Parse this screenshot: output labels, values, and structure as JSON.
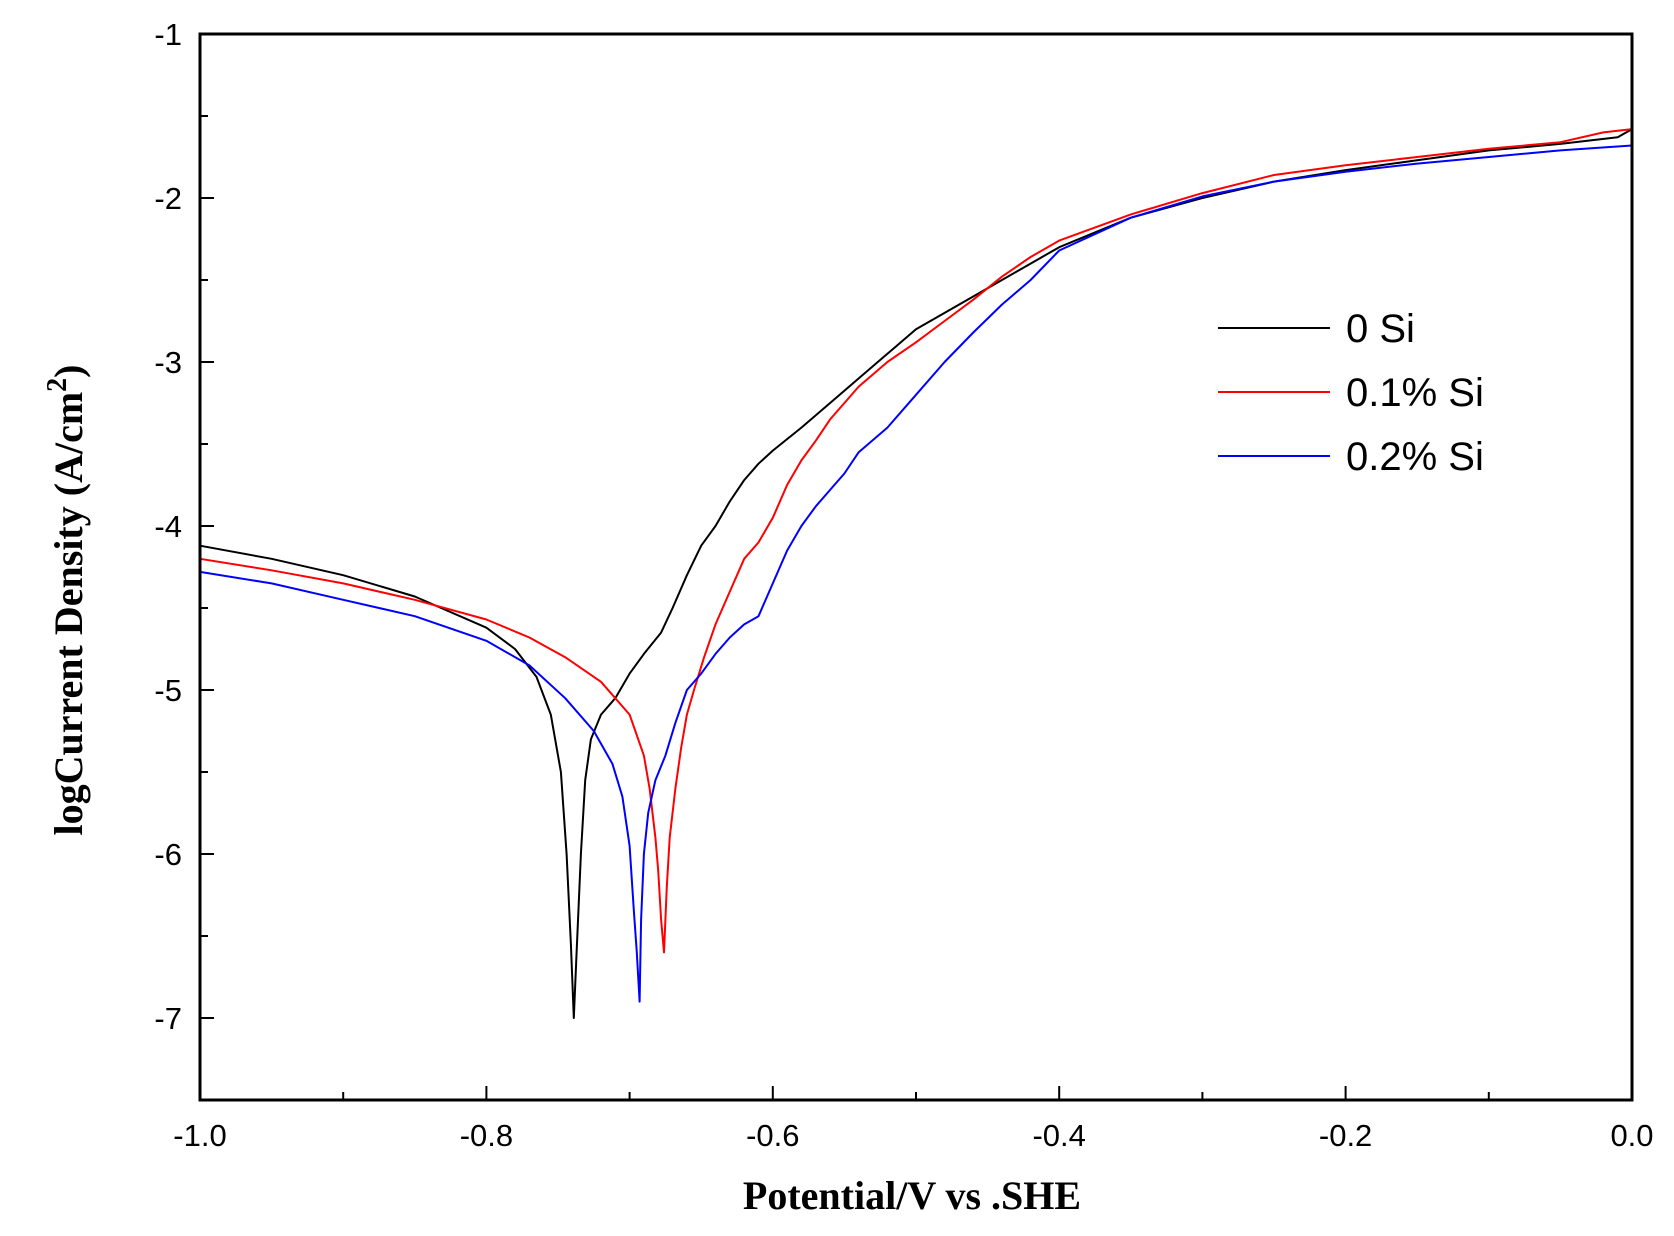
{
  "chart_data": {
    "type": "line",
    "title": "",
    "xlabel": "Potential/V vs .SHE",
    "ylabel": {
      "text": "logCurrent Density (A/cm",
      "superscript": "2",
      "close": ")"
    },
    "xlim": [
      -1.0,
      0.0
    ],
    "ylim": [
      -7.5,
      -1.0
    ],
    "xticks": [
      -1.0,
      -0.8,
      -0.6,
      -0.4,
      -0.2,
      0.0
    ],
    "xtick_labels": [
      "-1.0",
      "-0.8",
      "-0.6",
      "-0.4",
      "-0.2",
      "0.0"
    ],
    "yticks": [
      -1,
      -2,
      -3,
      -4,
      -5,
      -6,
      -7
    ],
    "ytick_labels": [
      "-1",
      "-2",
      "-3",
      "-4",
      "-5",
      "-6",
      "-7"
    ],
    "grid": false,
    "legend_position": "right-upper",
    "series": [
      {
        "name": "0 Si",
        "color": "#000000",
        "points": [
          [
            -1.0,
            -4.12
          ],
          [
            -0.95,
            -4.2
          ],
          [
            -0.9,
            -4.3
          ],
          [
            -0.85,
            -4.43
          ],
          [
            -0.8,
            -4.62
          ],
          [
            -0.78,
            -4.75
          ],
          [
            -0.765,
            -4.92
          ],
          [
            -0.755,
            -5.15
          ],
          [
            -0.748,
            -5.5
          ],
          [
            -0.744,
            -6.0
          ],
          [
            -0.741,
            -6.55
          ],
          [
            -0.739,
            -7.0
          ],
          [
            -0.737,
            -6.6
          ],
          [
            -0.734,
            -6.0
          ],
          [
            -0.731,
            -5.55
          ],
          [
            -0.727,
            -5.3
          ],
          [
            -0.72,
            -5.15
          ],
          [
            -0.71,
            -5.05
          ],
          [
            -0.7,
            -4.9
          ],
          [
            -0.69,
            -4.78
          ],
          [
            -0.678,
            -4.65
          ],
          [
            -0.67,
            -4.5
          ],
          [
            -0.66,
            -4.3
          ],
          [
            -0.65,
            -4.12
          ],
          [
            -0.64,
            -4.0
          ],
          [
            -0.63,
            -3.85
          ],
          [
            -0.62,
            -3.72
          ],
          [
            -0.61,
            -3.62
          ],
          [
            -0.6,
            -3.54
          ],
          [
            -0.58,
            -3.4
          ],
          [
            -0.56,
            -3.25
          ],
          [
            -0.54,
            -3.1
          ],
          [
            -0.52,
            -2.95
          ],
          [
            -0.5,
            -2.8
          ],
          [
            -0.47,
            -2.65
          ],
          [
            -0.45,
            -2.55
          ],
          [
            -0.42,
            -2.4
          ],
          [
            -0.4,
            -2.3
          ],
          [
            -0.35,
            -2.12
          ],
          [
            -0.3,
            -2.0
          ],
          [
            -0.25,
            -1.9
          ],
          [
            -0.2,
            -1.83
          ],
          [
            -0.15,
            -1.77
          ],
          [
            -0.1,
            -1.71
          ],
          [
            -0.05,
            -1.67
          ],
          [
            -0.01,
            -1.63
          ],
          [
            0.0,
            -1.58
          ]
        ]
      },
      {
        "name": "0.1% Si",
        "color": "#ff0000",
        "points": [
          [
            -1.0,
            -4.2
          ],
          [
            -0.95,
            -4.27
          ],
          [
            -0.9,
            -4.35
          ],
          [
            -0.85,
            -4.45
          ],
          [
            -0.8,
            -4.57
          ],
          [
            -0.77,
            -4.68
          ],
          [
            -0.745,
            -4.8
          ],
          [
            -0.72,
            -4.95
          ],
          [
            -0.7,
            -5.15
          ],
          [
            -0.69,
            -5.4
          ],
          [
            -0.686,
            -5.6
          ],
          [
            -0.682,
            -5.9
          ],
          [
            -0.68,
            -6.1
          ],
          [
            -0.678,
            -6.4
          ],
          [
            -0.676,
            -6.6
          ],
          [
            -0.674,
            -6.2
          ],
          [
            -0.672,
            -5.9
          ],
          [
            -0.668,
            -5.6
          ],
          [
            -0.664,
            -5.35
          ],
          [
            -0.66,
            -5.15
          ],
          [
            -0.655,
            -5.0
          ],
          [
            -0.648,
            -4.8
          ],
          [
            -0.64,
            -4.6
          ],
          [
            -0.63,
            -4.4
          ],
          [
            -0.62,
            -4.2
          ],
          [
            -0.61,
            -4.1
          ],
          [
            -0.6,
            -3.95
          ],
          [
            -0.59,
            -3.75
          ],
          [
            -0.58,
            -3.6
          ],
          [
            -0.57,
            -3.48
          ],
          [
            -0.56,
            -3.35
          ],
          [
            -0.54,
            -3.15
          ],
          [
            -0.52,
            -3.0
          ],
          [
            -0.5,
            -2.88
          ],
          [
            -0.48,
            -2.75
          ],
          [
            -0.46,
            -2.62
          ],
          [
            -0.44,
            -2.48
          ],
          [
            -0.42,
            -2.36
          ],
          [
            -0.4,
            -2.26
          ],
          [
            -0.35,
            -2.1
          ],
          [
            -0.3,
            -1.97
          ],
          [
            -0.25,
            -1.86
          ],
          [
            -0.2,
            -1.8
          ],
          [
            -0.15,
            -1.75
          ],
          [
            -0.1,
            -1.7
          ],
          [
            -0.05,
            -1.66
          ],
          [
            -0.02,
            -1.6
          ],
          [
            0.0,
            -1.58
          ]
        ]
      },
      {
        "name": "0.2% Si",
        "color": "#0000ff",
        "points": [
          [
            -1.0,
            -4.28
          ],
          [
            -0.95,
            -4.35
          ],
          [
            -0.9,
            -4.45
          ],
          [
            -0.85,
            -4.55
          ],
          [
            -0.8,
            -4.7
          ],
          [
            -0.77,
            -4.85
          ],
          [
            -0.745,
            -5.05
          ],
          [
            -0.725,
            -5.25
          ],
          [
            -0.712,
            -5.45
          ],
          [
            -0.705,
            -5.65
          ],
          [
            -0.7,
            -5.95
          ],
          [
            -0.697,
            -6.35
          ],
          [
            -0.695,
            -6.6
          ],
          [
            -0.693,
            -6.9
          ],
          [
            -0.692,
            -6.4
          ],
          [
            -0.69,
            -6.0
          ],
          [
            -0.687,
            -5.75
          ],
          [
            -0.682,
            -5.55
          ],
          [
            -0.675,
            -5.4
          ],
          [
            -0.668,
            -5.2
          ],
          [
            -0.66,
            -5.0
          ],
          [
            -0.65,
            -4.9
          ],
          [
            -0.64,
            -4.78
          ],
          [
            -0.63,
            -4.68
          ],
          [
            -0.62,
            -4.6
          ],
          [
            -0.61,
            -4.55
          ],
          [
            -0.6,
            -4.35
          ],
          [
            -0.59,
            -4.15
          ],
          [
            -0.58,
            -4.0
          ],
          [
            -0.57,
            -3.88
          ],
          [
            -0.56,
            -3.78
          ],
          [
            -0.55,
            -3.68
          ],
          [
            -0.54,
            -3.55
          ],
          [
            -0.52,
            -3.4
          ],
          [
            -0.5,
            -3.2
          ],
          [
            -0.48,
            -3.0
          ],
          [
            -0.46,
            -2.82
          ],
          [
            -0.44,
            -2.65
          ],
          [
            -0.42,
            -2.5
          ],
          [
            -0.4,
            -2.32
          ],
          [
            -0.35,
            -2.12
          ],
          [
            -0.3,
            -1.99
          ],
          [
            -0.25,
            -1.9
          ],
          [
            -0.2,
            -1.84
          ],
          [
            -0.15,
            -1.79
          ],
          [
            -0.1,
            -1.75
          ],
          [
            -0.05,
            -1.71
          ],
          [
            0.0,
            -1.68
          ]
        ]
      }
    ]
  }
}
